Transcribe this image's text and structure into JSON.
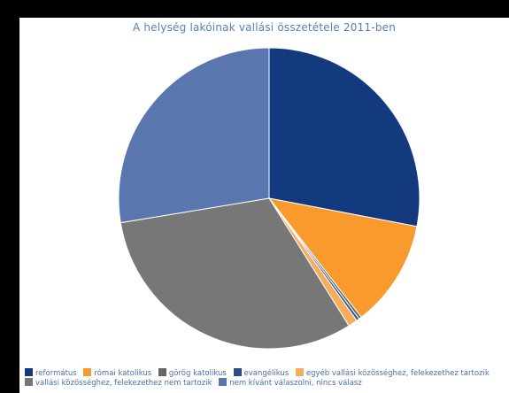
{
  "chart_data": {
    "type": "pie",
    "title": "A helység lakóinak vallási összetétele 2011-ben",
    "slices": [
      {
        "label": "református",
        "value": 28.0,
        "color": "#13397f"
      },
      {
        "label": "római katolikus",
        "value": 11.5,
        "color": "#f99a2d"
      },
      {
        "label": "görög katolikus",
        "value": 0.3,
        "color": "#666666"
      },
      {
        "label": "evangélikus",
        "value": 0.3,
        "color": "#2c4c8c"
      },
      {
        "label": "egyéb vallási közösséghez, felekezethez tartozik",
        "value": 1.0,
        "color": "#f7ae5a"
      },
      {
        "label": "vallási közösséghez, felekezethez nem tartozik",
        "value": 31.3,
        "color": "#777777"
      },
      {
        "label": "nem kívánt válaszolni, nincs válasz",
        "value": 27.6,
        "color": "#5a76ae"
      }
    ],
    "legend_position": "bottom"
  }
}
